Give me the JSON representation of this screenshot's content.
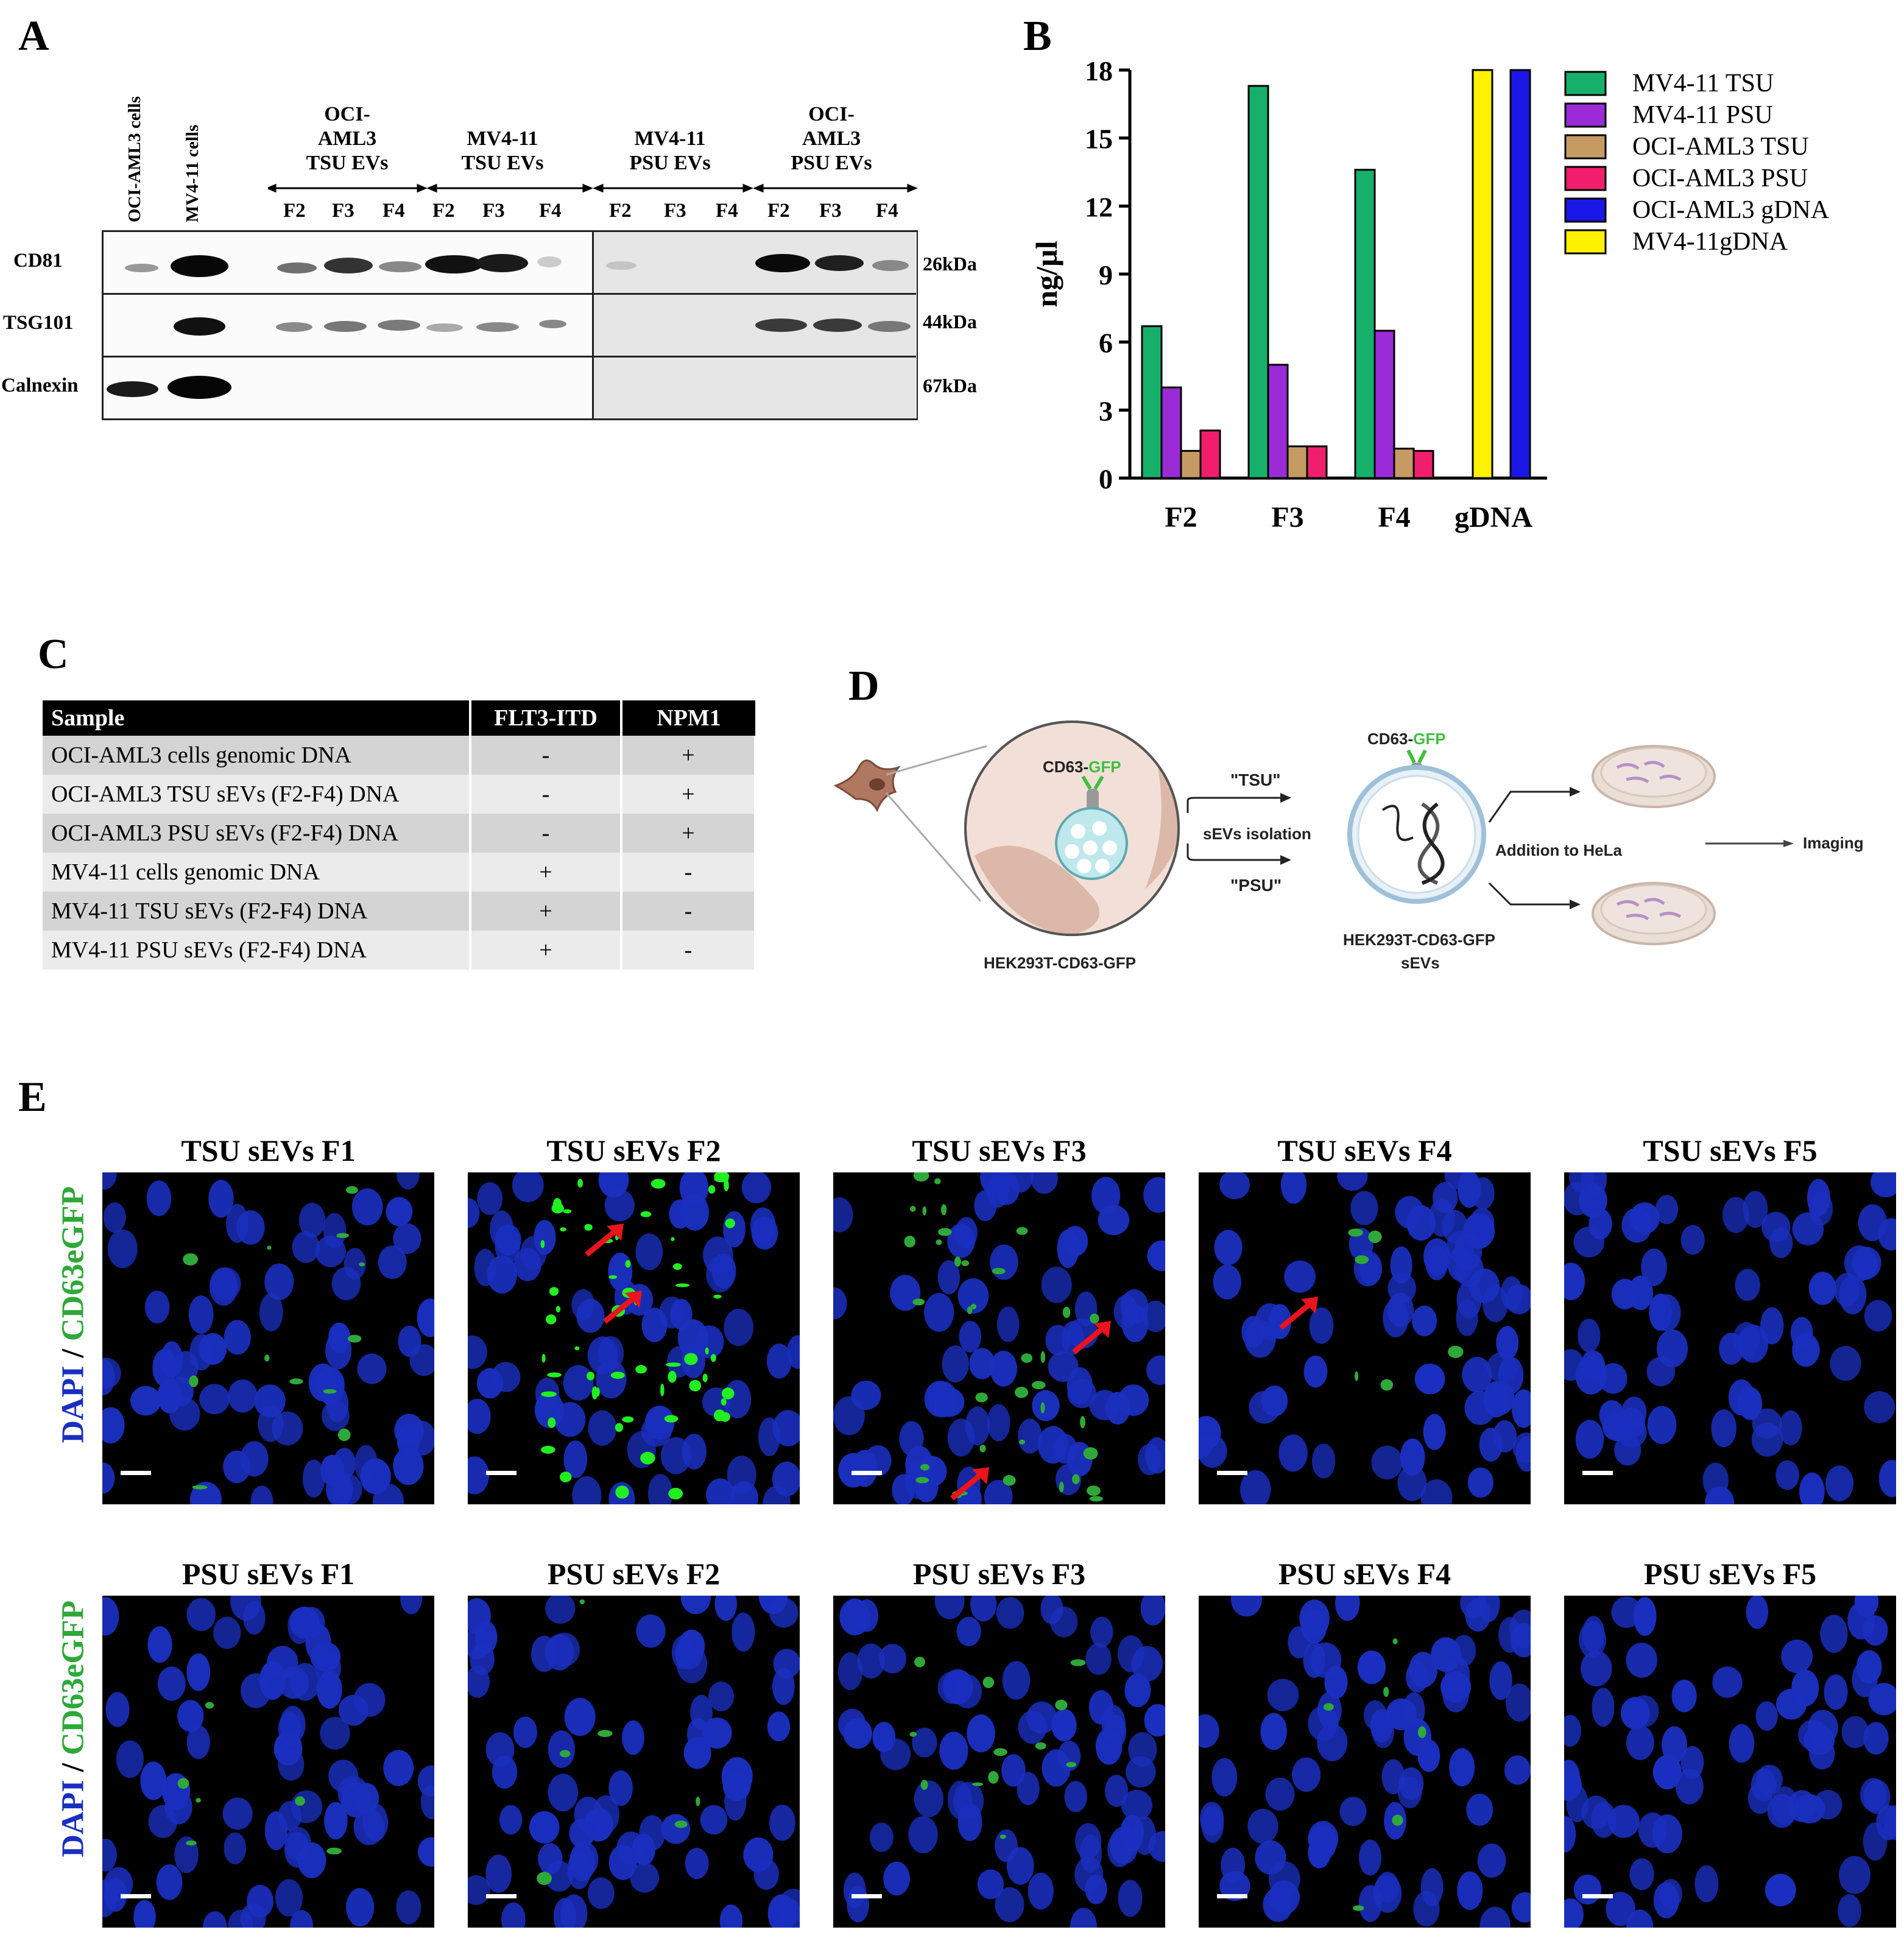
{
  "panels": {
    "a": "A",
    "b": "B",
    "c": "C",
    "d": "D",
    "e": "E"
  },
  "western_blot": {
    "lane_headers": [
      "OCI-AML3 cells",
      "MV4-11 cells"
    ],
    "groups": [
      {
        "l1": "OCI-",
        "l2": "AML3",
        "l3": "TSU EVs"
      },
      {
        "l1": "MV4-11",
        "l2": "TSU EVs",
        "l3": ""
      },
      {
        "l1": "MV4-11",
        "l2": "PSU EVs",
        "l3": ""
      },
      {
        "l1": "OCI-",
        "l2": "AML3",
        "l3": "PSU EVs"
      }
    ],
    "fractions": [
      "F2",
      "F3",
      "F4",
      "F2",
      "F3",
      "F4",
      "F2",
      "F3",
      "F4",
      "F2",
      "F3",
      "F4"
    ],
    "rows": [
      {
        "name": "CD81",
        "kda": "26kDa"
      },
      {
        "name": "TSG101",
        "kda": "44kDa"
      },
      {
        "name": "Calnexin",
        "kda": "67kDa"
      }
    ]
  },
  "chart_data": {
    "type": "bar",
    "ylabel": "ng/µl",
    "xlabel": "",
    "ylim": [
      0,
      18
    ],
    "yticks": [
      "0",
      "3",
      "6",
      "9",
      "12",
      "15",
      "18"
    ],
    "categories": [
      "F2",
      "F3",
      "F4",
      "gDNA"
    ],
    "legend_position": "top-right",
    "series": [
      {
        "name": "MV4-11 TSU",
        "color": "#17b06b",
        "values": [
          6.7,
          17.3,
          13.6,
          null
        ]
      },
      {
        "name": "MV4-11 PSU",
        "color": "#9b2bd6",
        "values": [
          4.0,
          5.0,
          6.5,
          null
        ]
      },
      {
        "name": "OCI-AML3 TSU",
        "color": "#c69b63",
        "values": [
          1.2,
          1.4,
          1.3,
          null
        ]
      },
      {
        "name": "OCI-AML3 PSU",
        "color": "#f01e6c",
        "values": [
          2.1,
          1.4,
          1.2,
          null
        ]
      },
      {
        "name": "OCI-AML3 gDNA",
        "color": "#1a18e6",
        "values": [
          null,
          null,
          null,
          18
        ]
      },
      {
        "name": "MV4-11gDNA",
        "color": "#fff200",
        "values": [
          null,
          null,
          null,
          18
        ]
      }
    ]
  },
  "table_c": {
    "headers": [
      "Sample",
      "FLT3-ITD",
      "NPM1"
    ],
    "rows": [
      {
        "sample": "OCI-AML3 cells genomic DNA",
        "flt3": "-",
        "npm1": "+"
      },
      {
        "sample": "OCI-AML3 TSU sEVs (F2-F4) DNA",
        "flt3": "-",
        "npm1": "+"
      },
      {
        "sample": "OCI-AML3 PSU sEVs (F2-F4) DNA",
        "flt3": "-",
        "npm1": "+"
      },
      {
        "sample": "MV4-11 cells genomic DNA",
        "flt3": "+",
        "npm1": "-"
      },
      {
        "sample": "MV4-11 TSU sEVs (F2-F4) DNA",
        "flt3": "+",
        "npm1": "-"
      },
      {
        "sample": "MV4-11 PSU sEVs (F2-F4) DNA",
        "flt3": "+",
        "npm1": "-"
      }
    ]
  },
  "schematic": {
    "cd63": "CD63-",
    "gfp": "GFP",
    "cell_label": "HEK293T-CD63-GFP",
    "tsu": "\"TSU\"",
    "psu": "\"PSU\"",
    "isolation": "sEVs isolation",
    "sev_label_1": "HEK293T-CD63-GFP",
    "sev_label_2": "sEVs",
    "addition": "Addition to HeLa",
    "imaging": "Imaging",
    "colors": {
      "gfp": "#3fbf3f",
      "cell": "#b07860",
      "circle_fill": "#f2e0d8"
    }
  },
  "microscopy": {
    "ylabel_dapi": "DAPI",
    "ylabel_sep": " / ",
    "ylabel_gfp": "CD63eGFP",
    "dapi_color": "#1a2fbf",
    "gfp_color": "#2fa83a",
    "tsu_titles": [
      "TSU sEVs F1",
      "TSU sEVs F2",
      "TSU sEVs F3",
      "TSU sEVs F4",
      "TSU sEVs F5"
    ],
    "psu_titles": [
      "PSU sEVs F1",
      "PSU sEVs F2",
      "PSU sEVs F3",
      "PSU sEVs F4",
      "PSU sEVs F5"
    ]
  }
}
